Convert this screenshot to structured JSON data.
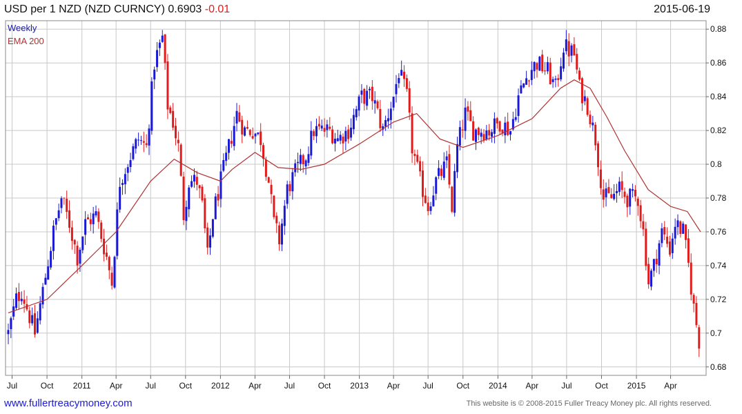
{
  "header": {
    "title": "USD per 1 NZD (NZD CURNCY) 0.6903",
    "change": "-0.01",
    "date": "2015-06-19"
  },
  "footer": {
    "url": "www.fullertreacymoney.com",
    "copyright": "This website is © 2008-2015 Fuller Treacy Money plc. All rights reserved."
  },
  "chart_data": {
    "type": "candlestick",
    "frequency_label": "Weekly",
    "overlay_label": "EMA 200",
    "legend_position": "top-left",
    "y_axis_side": "right",
    "ylim": [
      0.675,
      0.885
    ],
    "yticks": [
      0.68,
      0.7,
      0.72,
      0.74,
      0.76,
      0.78,
      0.8,
      0.82,
      0.84,
      0.86,
      0.88
    ],
    "ytick_labels": [
      "0.68",
      "0.7",
      "0.72",
      "0.74",
      "0.76",
      "0.78",
      "0.8",
      "0.82",
      "0.84",
      "0.86",
      "0.88"
    ],
    "x_range": [
      "2010-06-21",
      "2015-06-19"
    ],
    "xticks": [
      {
        "date": "2010-07-01",
        "label": "Jul"
      },
      {
        "date": "2010-10-01",
        "label": "Oct"
      },
      {
        "date": "2011-01-01",
        "label": "2011"
      },
      {
        "date": "2011-04-01",
        "label": "Apr"
      },
      {
        "date": "2011-07-01",
        "label": "Jul"
      },
      {
        "date": "2011-10-01",
        "label": "Oct"
      },
      {
        "date": "2012-01-01",
        "label": "2012"
      },
      {
        "date": "2012-04-01",
        "label": "Apr"
      },
      {
        "date": "2012-07-01",
        "label": "Jul"
      },
      {
        "date": "2012-10-01",
        "label": "Oct"
      },
      {
        "date": "2013-01-01",
        "label": "2013"
      },
      {
        "date": "2013-04-01",
        "label": "Apr"
      },
      {
        "date": "2013-07-01",
        "label": "Jul"
      },
      {
        "date": "2013-10-01",
        "label": "Oct"
      },
      {
        "date": "2014-01-01",
        "label": "2014"
      },
      {
        "date": "2014-04-01",
        "label": "Apr"
      },
      {
        "date": "2014-07-01",
        "label": "Jul"
      },
      {
        "date": "2014-10-01",
        "label": "Oct"
      },
      {
        "date": "2015-01-01",
        "label": "2015"
      },
      {
        "date": "2015-04-01",
        "label": "Apr"
      }
    ],
    "price_path": [
      [
        "2010-06-21",
        0.7
      ],
      [
        "2010-07-12",
        0.72
      ],
      [
        "2010-07-26",
        0.725
      ],
      [
        "2010-08-16",
        0.71
      ],
      [
        "2010-08-30",
        0.7
      ],
      [
        "2010-09-20",
        0.725
      ],
      [
        "2010-10-18",
        0.76
      ],
      [
        "2010-11-08",
        0.78
      ],
      [
        "2010-11-29",
        0.765
      ],
      [
        "2010-12-20",
        0.745
      ],
      [
        "2011-01-10",
        0.765
      ],
      [
        "2011-02-07",
        0.77
      ],
      [
        "2011-03-07",
        0.745
      ],
      [
        "2011-03-21",
        0.73
      ],
      [
        "2011-04-11",
        0.79
      ],
      [
        "2011-05-09",
        0.805
      ],
      [
        "2011-05-30",
        0.815
      ],
      [
        "2011-06-20",
        0.81
      ],
      [
        "2011-07-11",
        0.86
      ],
      [
        "2011-08-01",
        0.875
      ],
      [
        "2011-08-15",
        0.835
      ],
      [
        "2011-08-29",
        0.825
      ],
      [
        "2011-09-12",
        0.81
      ],
      [
        "2011-09-26",
        0.77
      ],
      [
        "2011-10-10",
        0.79
      ],
      [
        "2011-10-31",
        0.79
      ],
      [
        "2011-11-14",
        0.775
      ],
      [
        "2011-11-28",
        0.745
      ],
      [
        "2011-12-12",
        0.77
      ],
      [
        "2012-01-02",
        0.79
      ],
      [
        "2012-01-23",
        0.81
      ],
      [
        "2012-02-13",
        0.83
      ],
      [
        "2012-03-05",
        0.82
      ],
      [
        "2012-03-26",
        0.82
      ],
      [
        "2012-04-16",
        0.815
      ],
      [
        "2012-05-07",
        0.79
      ],
      [
        "2012-05-21",
        0.765
      ],
      [
        "2012-06-04",
        0.755
      ],
      [
        "2012-06-25",
        0.785
      ],
      [
        "2012-07-16",
        0.795
      ],
      [
        "2012-08-13",
        0.805
      ],
      [
        "2012-09-03",
        0.82
      ],
      [
        "2012-09-24",
        0.82
      ],
      [
        "2012-10-15",
        0.82
      ],
      [
        "2012-11-05",
        0.815
      ],
      [
        "2012-12-03",
        0.82
      ],
      [
        "2013-01-07",
        0.84
      ],
      [
        "2013-02-04",
        0.84
      ],
      [
        "2013-03-04",
        0.82
      ],
      [
        "2013-04-01",
        0.84
      ],
      [
        "2013-04-15",
        0.855
      ],
      [
        "2013-05-06",
        0.84
      ],
      [
        "2013-05-20",
        0.81
      ],
      [
        "2013-06-10",
        0.79
      ],
      [
        "2013-07-01",
        0.775
      ],
      [
        "2013-07-22",
        0.79
      ],
      [
        "2013-08-19",
        0.8
      ],
      [
        "2013-09-02",
        0.775
      ],
      [
        "2013-09-16",
        0.81
      ],
      [
        "2013-10-07",
        0.83
      ],
      [
        "2013-10-28",
        0.82
      ],
      [
        "2013-11-18",
        0.82
      ],
      [
        "2013-12-09",
        0.82
      ],
      [
        "2014-01-06",
        0.825
      ],
      [
        "2014-02-03",
        0.82
      ],
      [
        "2014-02-24",
        0.84
      ],
      [
        "2014-03-24",
        0.855
      ],
      [
        "2014-04-14",
        0.86
      ],
      [
        "2014-05-12",
        0.855
      ],
      [
        "2014-06-02",
        0.845
      ],
      [
        "2014-06-23",
        0.87
      ],
      [
        "2014-07-21",
        0.865
      ],
      [
        "2014-08-04",
        0.845
      ],
      [
        "2014-08-25",
        0.835
      ],
      [
        "2014-09-15",
        0.815
      ],
      [
        "2014-10-06",
        0.78
      ],
      [
        "2014-10-27",
        0.78
      ],
      [
        "2014-11-17",
        0.785
      ],
      [
        "2014-12-08",
        0.78
      ],
      [
        "2015-01-05",
        0.78
      ],
      [
        "2015-01-19",
        0.76
      ],
      [
        "2015-02-02",
        0.73
      ],
      [
        "2015-02-16",
        0.74
      ],
      [
        "2015-03-09",
        0.76
      ],
      [
        "2015-03-30",
        0.75
      ],
      [
        "2015-04-13",
        0.765
      ],
      [
        "2015-05-04",
        0.76
      ],
      [
        "2015-05-18",
        0.74
      ],
      [
        "2015-06-01",
        0.715
      ],
      [
        "2015-06-19",
        0.69
      ]
    ],
    "ema200": [
      [
        "2010-06-21",
        0.712
      ],
      [
        "2010-10-01",
        0.72
      ],
      [
        "2011-01-01",
        0.74
      ],
      [
        "2011-04-01",
        0.76
      ],
      [
        "2011-07-01",
        0.79
      ],
      [
        "2011-09-01",
        0.803
      ],
      [
        "2011-11-01",
        0.795
      ],
      [
        "2012-01-01",
        0.79
      ],
      [
        "2012-02-01",
        0.797
      ],
      [
        "2012-04-01",
        0.807
      ],
      [
        "2012-06-01",
        0.798
      ],
      [
        "2012-08-01",
        0.797
      ],
      [
        "2012-10-01",
        0.8
      ],
      [
        "2013-01-01",
        0.812
      ],
      [
        "2013-04-01",
        0.825
      ],
      [
        "2013-06-01",
        0.83
      ],
      [
        "2013-08-01",
        0.815
      ],
      [
        "2013-10-01",
        0.81
      ],
      [
        "2014-01-01",
        0.817
      ],
      [
        "2014-04-01",
        0.827
      ],
      [
        "2014-06-15",
        0.845
      ],
      [
        "2014-07-21",
        0.85
      ],
      [
        "2014-09-01",
        0.845
      ],
      [
        "2014-10-15",
        0.828
      ],
      [
        "2014-12-01",
        0.808
      ],
      [
        "2015-02-01",
        0.785
      ],
      [
        "2015-04-01",
        0.775
      ],
      [
        "2015-05-15",
        0.772
      ],
      [
        "2015-06-19",
        0.76
      ]
    ]
  },
  "colors": {
    "up": "#1a1ad6",
    "down": "#e01b1b",
    "ema": "#b03030",
    "grid": "#c8c8c8"
  }
}
